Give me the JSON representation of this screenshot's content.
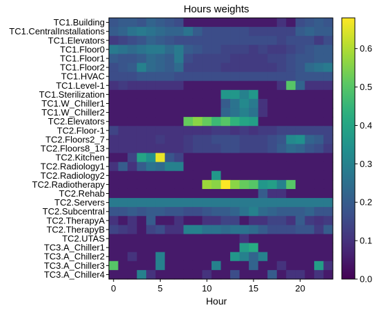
{
  "chart_data": {
    "type": "heatmap",
    "title": "Hours weights",
    "xlabel": "Hour",
    "ylabel": "",
    "x": [
      0,
      1,
      2,
      3,
      4,
      5,
      6,
      7,
      8,
      9,
      10,
      11,
      12,
      13,
      14,
      15,
      16,
      17,
      18,
      19,
      20,
      21,
      22,
      23
    ],
    "xticks": [
      0,
      5,
      10,
      15,
      20
    ],
    "rows": [
      "TC1.Building",
      "TC1.CentralInstallations",
      "TC1.Elevators",
      "TC1.Floor0",
      "TC1.Floor1",
      "TC1.Floor2",
      "TC1.HVAC",
      "TC1.Level-1",
      "TC1.Sterilization",
      "TC1.W_Chiller1",
      "TC1.W_Chiller2",
      "TC2.Elevators",
      "TC2.Floor-1",
      "TC2.Floors2_7",
      "TC2.Floors8_13",
      "TC2.Kitchen",
      "TC2.Radiology1",
      "TC2.Radiology2",
      "TC2.Radiotherapy",
      "TC2.Rehab",
      "TC2.Servers",
      "TC2.Subcentral",
      "TC2.TherapyA",
      "TC2.TherapyB",
      "TC2.UTAS",
      "TC3.A_Chiller1",
      "TC3.A_Chiller2",
      "TC3.A_Chiller3",
      "TC3.A_Chiller4"
    ],
    "values": [
      [
        0.18,
        0.2,
        0.2,
        0.18,
        0.22,
        0.2,
        0.18,
        0.16,
        0.05,
        0.05,
        0.05,
        0.05,
        0.05,
        0.05,
        0.05,
        0.05,
        0.05,
        0.05,
        0.1,
        0.05,
        0.16,
        0.18,
        0.2,
        0.18
      ],
      [
        0.2,
        0.22,
        0.26,
        0.28,
        0.26,
        0.24,
        0.22,
        0.22,
        0.26,
        0.2,
        0.16,
        0.16,
        0.16,
        0.16,
        0.16,
        0.14,
        0.14,
        0.14,
        0.14,
        0.14,
        0.2,
        0.22,
        0.2,
        0.2
      ],
      [
        0.12,
        0.14,
        0.16,
        0.18,
        0.22,
        0.2,
        0.18,
        0.16,
        0.16,
        0.16,
        0.16,
        0.16,
        0.16,
        0.16,
        0.16,
        0.16,
        0.16,
        0.16,
        0.14,
        0.16,
        0.16,
        0.16,
        0.12,
        0.16
      ],
      [
        0.28,
        0.26,
        0.24,
        0.26,
        0.28,
        0.28,
        0.24,
        0.28,
        0.2,
        0.18,
        0.16,
        0.16,
        0.14,
        0.14,
        0.14,
        0.12,
        0.14,
        0.12,
        0.12,
        0.14,
        0.16,
        0.18,
        0.2,
        0.2
      ],
      [
        0.2,
        0.18,
        0.18,
        0.2,
        0.24,
        0.22,
        0.2,
        0.28,
        0.16,
        0.14,
        0.14,
        0.14,
        0.14,
        0.12,
        0.12,
        0.12,
        0.12,
        0.14,
        0.14,
        0.16,
        0.18,
        0.18,
        0.2,
        0.2
      ],
      [
        0.16,
        0.18,
        0.2,
        0.3,
        0.24,
        0.22,
        0.2,
        0.24,
        0.14,
        0.14,
        0.14,
        0.14,
        0.12,
        0.12,
        0.12,
        0.12,
        0.12,
        0.12,
        0.14,
        0.16,
        0.18,
        0.24,
        0.26,
        0.28
      ],
      [
        0.16,
        0.16,
        0.16,
        0.18,
        0.18,
        0.18,
        0.18,
        0.16,
        0.16,
        0.16,
        0.16,
        0.16,
        0.16,
        0.16,
        0.16,
        0.16,
        0.16,
        0.16,
        0.16,
        0.16,
        0.18,
        0.18,
        0.18,
        0.18
      ],
      [
        0.1,
        0.12,
        0.1,
        0.1,
        0.1,
        0.1,
        0.1,
        0.1,
        0.05,
        0.05,
        0.05,
        0.05,
        0.05,
        0.05,
        0.05,
        0.05,
        0.05,
        0.05,
        0.1,
        0.5,
        0.22,
        0.1,
        0.1,
        0.1
      ],
      [
        0.05,
        0.05,
        0.05,
        0.05,
        0.05,
        0.05,
        0.05,
        0.05,
        0.05,
        0.05,
        0.05,
        0.05,
        0.36,
        0.36,
        0.3,
        0.36,
        0.05,
        0.05,
        0.05,
        0.05,
        0.05,
        0.05,
        0.05,
        0.05
      ],
      [
        0.05,
        0.05,
        0.05,
        0.05,
        0.05,
        0.05,
        0.05,
        0.05,
        0.05,
        0.05,
        0.05,
        0.05,
        0.2,
        0.26,
        0.32,
        0.28,
        0.1,
        0.05,
        0.05,
        0.05,
        0.05,
        0.05,
        0.05,
        0.05
      ],
      [
        0.05,
        0.05,
        0.05,
        0.05,
        0.05,
        0.05,
        0.05,
        0.05,
        0.05,
        0.05,
        0.05,
        0.05,
        0.22,
        0.26,
        0.3,
        0.26,
        0.1,
        0.05,
        0.05,
        0.05,
        0.05,
        0.05,
        0.05,
        0.05
      ],
      [
        0.05,
        0.05,
        0.05,
        0.05,
        0.05,
        0.05,
        0.05,
        0.05,
        0.52,
        0.56,
        0.52,
        0.46,
        0.5,
        0.44,
        0.4,
        0.38,
        0.05,
        0.05,
        0.05,
        0.05,
        0.05,
        0.05,
        0.05,
        0.05
      ],
      [
        0.14,
        0.1,
        0.1,
        0.1,
        0.1,
        0.1,
        0.1,
        0.1,
        0.1,
        0.1,
        0.1,
        0.12,
        0.12,
        0.1,
        0.12,
        0.1,
        0.12,
        0.12,
        0.14,
        0.14,
        0.14,
        0.14,
        0.14,
        0.14
      ],
      [
        0.1,
        0.1,
        0.1,
        0.1,
        0.1,
        0.12,
        0.1,
        0.1,
        0.12,
        0.14,
        0.14,
        0.16,
        0.16,
        0.16,
        0.14,
        0.14,
        0.14,
        0.16,
        0.18,
        0.32,
        0.34,
        0.22,
        0.2,
        0.14
      ],
      [
        0.1,
        0.1,
        0.1,
        0.1,
        0.1,
        0.1,
        0.1,
        0.1,
        0.12,
        0.14,
        0.14,
        0.14,
        0.16,
        0.16,
        0.14,
        0.14,
        0.14,
        0.16,
        0.2,
        0.24,
        0.22,
        0.18,
        0.16,
        0.12
      ],
      [
        0.05,
        0.05,
        0.14,
        0.4,
        0.34,
        0.66,
        0.18,
        0.14,
        0.05,
        0.05,
        0.05,
        0.05,
        0.05,
        0.05,
        0.05,
        0.05,
        0.05,
        0.05,
        0.05,
        0.05,
        0.05,
        0.05,
        0.05,
        0.05
      ],
      [
        0.1,
        0.2,
        0.1,
        0.2,
        0.26,
        0.24,
        0.3,
        0.3,
        0.05,
        0.05,
        0.05,
        0.05,
        0.05,
        0.05,
        0.05,
        0.05,
        0.05,
        0.05,
        0.05,
        0.05,
        0.05,
        0.05,
        0.05,
        0.05
      ],
      [
        0.05,
        0.05,
        0.05,
        0.05,
        0.05,
        0.05,
        0.05,
        0.05,
        0.05,
        0.05,
        0.05,
        0.36,
        0.05,
        0.05,
        0.05,
        0.05,
        0.05,
        0.05,
        0.05,
        0.05,
        0.05,
        0.05,
        0.05,
        0.05
      ],
      [
        0.05,
        0.05,
        0.05,
        0.05,
        0.05,
        0.05,
        0.05,
        0.05,
        0.05,
        0.05,
        0.58,
        0.56,
        0.68,
        0.56,
        0.52,
        0.5,
        0.36,
        0.38,
        0.3,
        0.5,
        0.05,
        0.05,
        0.05,
        0.05
      ],
      [
        0.05,
        0.05,
        0.05,
        0.05,
        0.05,
        0.05,
        0.05,
        0.05,
        0.05,
        0.05,
        0.05,
        0.05,
        0.05,
        0.05,
        0.05,
        0.05,
        0.2,
        0.1,
        0.1,
        0.05,
        0.05,
        0.05,
        0.05,
        0.05
      ],
      [
        0.28,
        0.28,
        0.28,
        0.28,
        0.28,
        0.28,
        0.28,
        0.28,
        0.28,
        0.28,
        0.28,
        0.28,
        0.28,
        0.28,
        0.28,
        0.28,
        0.28,
        0.28,
        0.28,
        0.28,
        0.28,
        0.28,
        0.28,
        0.28
      ],
      [
        0.18,
        0.18,
        0.2,
        0.18,
        0.2,
        0.2,
        0.18,
        0.18,
        0.16,
        0.16,
        0.18,
        0.2,
        0.2,
        0.22,
        0.26,
        0.3,
        0.24,
        0.22,
        0.2,
        0.2,
        0.2,
        0.22,
        0.18,
        0.18
      ],
      [
        0.1,
        0.05,
        0.1,
        0.05,
        0.2,
        0.05,
        0.05,
        0.1,
        0.05,
        0.05,
        0.1,
        0.1,
        0.14,
        0.14,
        0.05,
        0.1,
        0.1,
        0.14,
        0.14,
        0.1,
        0.2,
        0.12,
        0.1,
        0.12
      ],
      [
        0.14,
        0.12,
        0.1,
        0.05,
        0.14,
        0.16,
        0.1,
        0.1,
        0.3,
        0.3,
        0.26,
        0.26,
        0.24,
        0.26,
        0.26,
        0.24,
        0.2,
        0.16,
        0.16,
        0.16,
        0.18,
        0.18,
        0.12,
        0.2
      ],
      [
        0.05,
        0.05,
        0.05,
        0.05,
        0.05,
        0.05,
        0.05,
        0.05,
        0.05,
        0.05,
        0.05,
        0.05,
        0.05,
        0.05,
        0.1,
        0.05,
        0.05,
        0.05,
        0.05,
        0.05,
        0.05,
        0.05,
        0.05,
        0.05
      ],
      [
        0.05,
        0.05,
        0.05,
        0.05,
        0.05,
        0.05,
        0.05,
        0.05,
        0.05,
        0.05,
        0.05,
        0.05,
        0.05,
        0.05,
        0.38,
        0.42,
        0.05,
        0.05,
        0.05,
        0.05,
        0.05,
        0.05,
        0.05,
        0.05
      ],
      [
        0.05,
        0.05,
        0.1,
        0.05,
        0.05,
        0.3,
        0.05,
        0.05,
        0.05,
        0.05,
        0.05,
        0.05,
        0.05,
        0.36,
        0.3,
        0.22,
        0.3,
        0.05,
        0.05,
        0.05,
        0.05,
        0.05,
        0.05,
        0.05
      ],
      [
        0.5,
        0.05,
        0.05,
        0.05,
        0.05,
        0.3,
        0.05,
        0.05,
        0.05,
        0.05,
        0.05,
        0.3,
        0.05,
        0.05,
        0.05,
        0.22,
        0.05,
        0.05,
        0.1,
        0.05,
        0.05,
        0.05,
        0.38,
        0.1
      ],
      [
        0.05,
        0.05,
        0.05,
        0.3,
        0.1,
        0.05,
        0.05,
        0.05,
        0.05,
        0.05,
        0.1,
        0.05,
        0.05,
        0.16,
        0.05,
        0.05,
        0.05,
        0.2,
        0.05,
        0.1,
        0.1,
        0.05,
        0.1,
        0.05
      ]
    ],
    "colormap": "viridis",
    "colorbar_range": [
      0.0,
      0.68
    ],
    "colorbar_ticks": [
      0.0,
      0.1,
      0.2,
      0.3,
      0.4,
      0.5,
      0.6
    ],
    "colorbar_tick_labels": [
      "0.0",
      "0.1",
      "0.2",
      "0.3",
      "0.4",
      "0.5",
      "0.6"
    ]
  }
}
